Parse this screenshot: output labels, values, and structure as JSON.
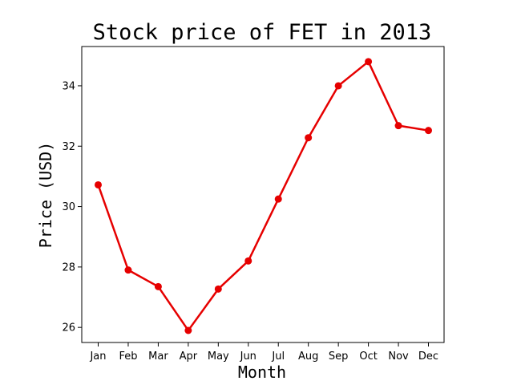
{
  "chart_data": {
    "type": "line",
    "title": "Stock price of FET in 2013",
    "xlabel": "Month",
    "ylabel": "Price (USD)",
    "categories": [
      "Jan",
      "Feb",
      "Mar",
      "Apr",
      "May",
      "Jun",
      "Jul",
      "Aug",
      "Sep",
      "Oct",
      "Nov",
      "Dec"
    ],
    "series": [
      {
        "values": [
          30.72,
          27.9,
          27.35,
          25.9,
          27.27,
          28.2,
          30.25,
          32.28,
          34.0,
          34.8,
          32.68,
          32.52
        ],
        "color": "#e60000",
        "marker": "circle"
      }
    ],
    "ylim": [
      25.5,
      35.3
    ],
    "yticks": [
      26,
      28,
      30,
      32,
      34
    ],
    "grid": false,
    "legend": "none"
  }
}
